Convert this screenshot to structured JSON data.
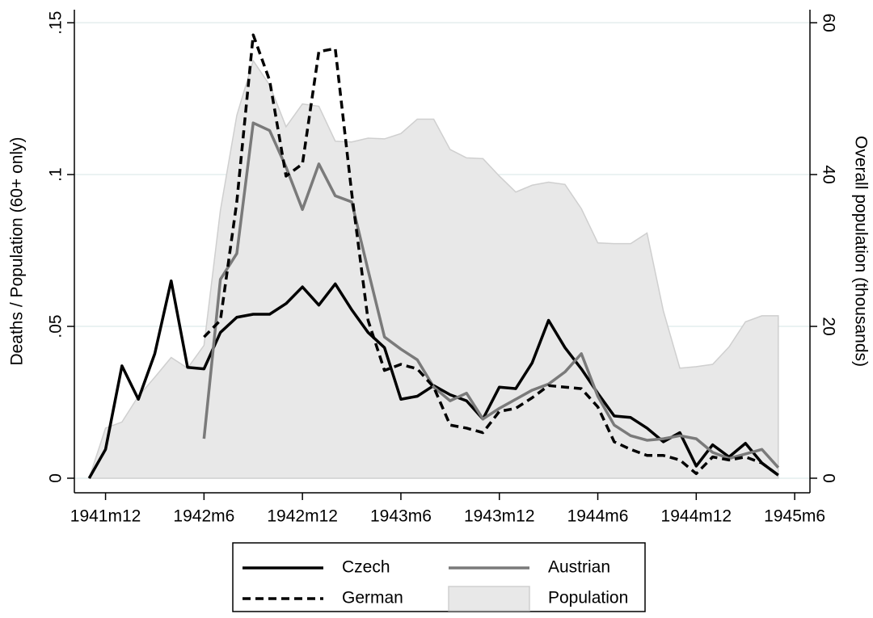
{
  "chart_data": {
    "type": "line",
    "x": [
      -218,
      -217,
      -216,
      -215,
      -214,
      -213,
      -212,
      -211,
      -210,
      -209,
      -208,
      -207,
      -206,
      -205,
      -204,
      -203,
      -202,
      -201,
      -200,
      -199,
      -198,
      -197,
      -196,
      -195,
      -194,
      -193,
      -192,
      -191,
      -190,
      -189,
      -188,
      -187,
      -186,
      -185,
      -184,
      -183,
      -182,
      -181,
      -180,
      -179,
      -178,
      -177,
      -176
    ],
    "xlim": [
      -218.9,
      -174.07
    ],
    "xticks": [
      {
        "value": -217,
        "label": "1941m12"
      },
      {
        "value": -211,
        "label": "1942m6"
      },
      {
        "value": -205,
        "label": "1942m12"
      },
      {
        "value": -199,
        "label": "1943m6"
      },
      {
        "value": -193,
        "label": "1943m12"
      },
      {
        "value": -187,
        "label": "1944m6"
      },
      {
        "value": -181,
        "label": "1944m12"
      },
      {
        "value": -175,
        "label": "1945m6"
      }
    ],
    "ylabel": "Deaths / Population (60+ only)",
    "y2label": "Overall population (thousands)",
    "ylim": [
      -0.0048,
      0.1543
    ],
    "yticks": [
      0,
      {
        "value": 0.05,
        "label": ".05"
      },
      {
        "value": 0.1,
        "label": ".1"
      },
      {
        "value": 0.15,
        "label": ".15"
      }
    ],
    "y2lim": [
      -1.92,
      61.72
    ],
    "y2ticks": [
      0,
      20,
      40,
      60
    ],
    "grid": true,
    "series": [
      {
        "name": "Czech",
        "color": "#000000",
        "style": "solid",
        "values": [
          0,
          0.0095,
          0.037,
          0.026,
          0.041,
          0.065,
          0.0365,
          0.036,
          0.048,
          0.053,
          0.054,
          0.054,
          0.0575,
          0.063,
          0.057,
          0.064,
          0.0555,
          0.048,
          0.043,
          0.026,
          0.027,
          0.0305,
          0.0275,
          0.0255,
          0.0195,
          0.03,
          0.0295,
          0.038,
          0.052,
          0.043,
          0.036,
          0.028,
          0.0205,
          0.02,
          0.0165,
          0.012,
          0.015,
          0.004,
          0.011,
          0.007,
          0.0115,
          0.005,
          0.001
        ]
      },
      {
        "name": "Austrian",
        "color": "#7a7a7a",
        "style": "solid",
        "values": [
          null,
          null,
          null,
          null,
          null,
          null,
          null,
          0.013,
          0.0655,
          0.074,
          0.117,
          0.1145,
          0.1025,
          0.0885,
          0.1035,
          0.093,
          0.091,
          0.0685,
          0.0465,
          0.0425,
          0.039,
          0.03,
          0.0255,
          0.028,
          0.0195,
          0.023,
          0.026,
          0.029,
          0.031,
          0.035,
          0.041,
          0.027,
          0.0175,
          0.014,
          0.0125,
          0.013,
          0.014,
          0.013,
          0.0085,
          0.0065,
          0.008,
          0.0095,
          0.0035
        ]
      },
      {
        "name": "German",
        "color": "#000000",
        "style": "dashed",
        "values": [
          null,
          null,
          null,
          null,
          null,
          null,
          null,
          0.0465,
          0.052,
          0.091,
          0.146,
          0.131,
          0.0995,
          0.1035,
          0.1405,
          0.1415,
          0.094,
          0.052,
          0.0355,
          0.0375,
          0.036,
          0.03,
          0.0175,
          0.0165,
          0.015,
          0.022,
          0.023,
          0.0265,
          0.0305,
          0.03,
          0.0295,
          0.0235,
          0.012,
          0.0095,
          0.0075,
          0.0075,
          0.006,
          0.0015,
          0.007,
          0.006,
          0.007,
          0.005,
          0.001
        ]
      },
      {
        "name": "Population",
        "color": "#e8e8e8",
        "style": "area",
        "axis": "y2",
        "values": [
          0,
          6.6,
          7.4,
          10.8,
          13.3,
          15.9,
          14.5,
          17.5,
          35.3,
          47.8,
          55,
          51.8,
          46.3,
          49.3,
          49,
          44.4,
          44.3,
          44.8,
          44.7,
          45.4,
          47.3,
          47.3,
          43.3,
          42.2,
          42.1,
          39.8,
          37.7,
          38.6,
          39,
          38.7,
          35.5,
          31,
          30.9,
          30.9,
          32.3,
          22,
          14.5,
          14.7,
          15,
          17.3,
          20.6,
          21.4,
          21.4
        ]
      }
    ]
  }
}
